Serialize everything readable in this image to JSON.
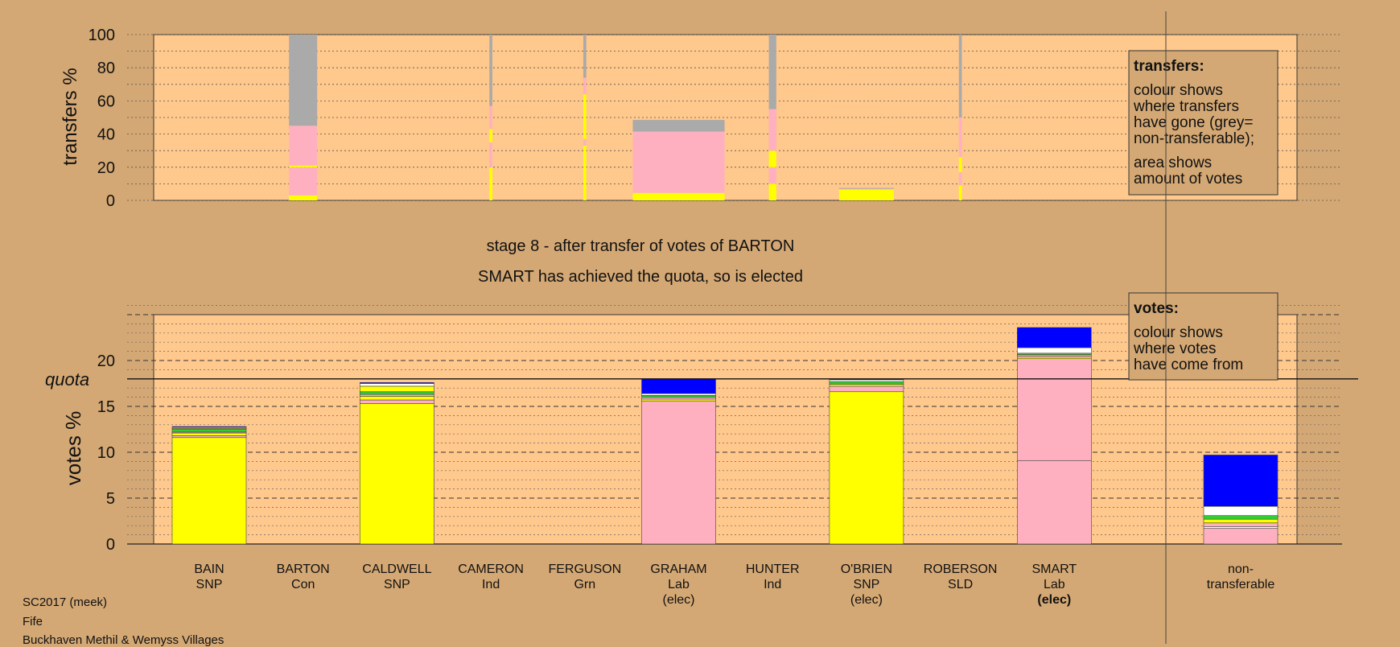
{
  "chart_data": [
    {
      "type": "bar",
      "stacked": true,
      "ylabel": "transfers %",
      "ylim": [
        0,
        100
      ],
      "yticks": [
        0,
        20,
        40,
        60,
        80,
        100
      ],
      "legend": {
        "title": "transfers:",
        "lines1": [
          "colour shows",
          "where transfers",
          "have gone (grey=",
          "non-transferable);"
        ],
        "lines2": [
          "area shows",
          "amount of votes"
        ]
      },
      "columns": [
        {
          "candidate": "BARTON",
          "segments": [
            {
              "color": "#ffff00",
              "value": 3
            },
            {
              "color": "#ffb0c0",
              "value": 17
            },
            {
              "color": "#ffff00",
              "value": 1
            },
            {
              "color": "#ffb0c0",
              "value": 24
            },
            {
              "color": "#aaaaaa",
              "value": 55
            }
          ]
        }
      ],
      "transfer_columns": [
        {
          "candidate": "BARTON",
          "width_frac": 0.38,
          "segments": [
            {
              "color": "#ffff00",
              "value": 3
            },
            {
              "color": "#ffb0c0",
              "value": 17
            },
            {
              "color": "#ffff00",
              "value": 1
            },
            {
              "color": "#ffb0c0",
              "value": 24
            },
            {
              "color": "#aaaaaa",
              "value": 55
            }
          ]
        },
        {
          "candidate": "CAMERON",
          "width_frac": 0.04,
          "segments": [
            {
              "color": "#ffff00",
              "value": 20
            },
            {
              "color": "#ffb0c0",
              "value": 15
            },
            {
              "color": "#ffff00",
              "value": 8
            },
            {
              "color": "#ffb0c0",
              "value": 14
            },
            {
              "color": "#aaaaaa",
              "value": 43
            }
          ]
        },
        {
          "candidate": "FERGUSON",
          "width_frac": 0.04,
          "segments": [
            {
              "color": "#ffff00",
              "value": 33
            },
            {
              "color": "#ffb0c0",
              "value": 4
            },
            {
              "color": "#ffff00",
              "value": 27
            },
            {
              "color": "#ffb0c0",
              "value": 10
            },
            {
              "color": "#aaaaaa",
              "value": 26
            }
          ]
        },
        {
          "candidate": "GRAHAM",
          "width_frac": 1.24,
          "segments": [
            {
              "color": "#ffff00",
              "value": 4.5
            },
            {
              "color": "#ffb0c0",
              "value": 37
            },
            {
              "color": "#aaaaaa",
              "value": 7
            }
          ]
        },
        {
          "candidate": "HUNTER",
          "width_frac": 0.1,
          "segments": [
            {
              "color": "#ffff00",
              "value": 10
            },
            {
              "color": "#ffb0c0",
              "value": 10
            },
            {
              "color": "#ffff00",
              "value": 10
            },
            {
              "color": "#ffb0c0",
              "value": 25
            },
            {
              "color": "#aaaaaa",
              "value": 45
            }
          ]
        },
        {
          "candidate": "O'BRIEN",
          "width_frac": 0.74,
          "segments": [
            {
              "color": "#ffff00",
              "value": 6.5
            },
            {
              "color": "#ffb0c0",
              "value": 0.5
            },
            {
              "color": "#aaaaaa",
              "value": 0.5
            }
          ]
        },
        {
          "candidate": "ROBERSON",
          "width_frac": 0.04,
          "segments": [
            {
              "color": "#ffff00",
              "value": 9
            },
            {
              "color": "#ffb0c0",
              "value": 8
            },
            {
              "color": "#ffff00",
              "value": 9
            },
            {
              "color": "#ffb0c0",
              "value": 24
            },
            {
              "color": "#aaaaaa",
              "value": 50
            }
          ]
        }
      ]
    },
    {
      "type": "bar",
      "stacked": true,
      "ylabel": "votes %",
      "ylim": [
        0,
        25
      ],
      "yticks": [
        0,
        5,
        10,
        15,
        20
      ],
      "quota": 18.0,
      "quota_label": "quota",
      "legend": {
        "title": "votes:",
        "lines1": [
          "colour shows",
          "where votes",
          "have come from"
        ]
      },
      "categories": [
        {
          "name": "BAIN",
          "party": "SNP",
          "elected": ""
        },
        {
          "name": "BARTON",
          "party": "Con",
          "elected": ""
        },
        {
          "name": "CALDWELL",
          "party": "SNP",
          "elected": ""
        },
        {
          "name": "CAMERON",
          "party": "Ind",
          "elected": ""
        },
        {
          "name": "FERGUSON",
          "party": "Grn",
          "elected": ""
        },
        {
          "name": "GRAHAM",
          "party": "Lab",
          "elected": "(elec)"
        },
        {
          "name": "HUNTER",
          "party": "Ind",
          "elected": ""
        },
        {
          "name": "O'BRIEN",
          "party": "SNP",
          "elected": "(elec)"
        },
        {
          "name": "ROBERSON",
          "party": "SLD",
          "elected": ""
        },
        {
          "name": "SMART",
          "party": "Lab",
          "elected": "(elec)",
          "bold": true
        }
      ],
      "nontransferable_label": [
        "non-",
        "transferable"
      ],
      "bars": [
        {
          "candidate": "BAIN",
          "segments": [
            {
              "color": "#ffff00",
              "value": 11.6
            },
            {
              "color": "#ffb0c0",
              "value": 0.2
            },
            {
              "color": "#ffff00",
              "value": 0.3
            },
            {
              "color": "#ffb0c0",
              "value": 0.1
            },
            {
              "color": "#33cc33",
              "value": 0.3
            },
            {
              "color": "#ffff00",
              "value": 0.1
            },
            {
              "color": "#ffffff",
              "value": 0.1
            },
            {
              "color": "#0000ff",
              "value": 0.1
            }
          ]
        },
        {
          "candidate": "BARTON",
          "segments": []
        },
        {
          "candidate": "CALDWELL",
          "segments": [
            {
              "color": "#ffff00",
              "value": 15.3
            },
            {
              "color": "#ffb0c0",
              "value": 0.4
            },
            {
              "color": "#ffff00",
              "value": 0.4
            },
            {
              "color": "#ffb0c0",
              "value": 0.2
            },
            {
              "color": "#33cc33",
              "value": 0.3
            },
            {
              "color": "#ffff00",
              "value": 0.6
            },
            {
              "color": "#ffffff",
              "value": 0.3
            },
            {
              "color": "#0000ff",
              "value": 0.1
            }
          ]
        },
        {
          "candidate": "CAMERON",
          "segments": []
        },
        {
          "candidate": "FERGUSON",
          "segments": []
        },
        {
          "candidate": "GRAHAM",
          "segments": [
            {
              "color": "#ffb0c0",
              "value": 15.6
            },
            {
              "color": "#ffff00",
              "value": 0.2
            },
            {
              "color": "#ffb0c0",
              "value": 0.2
            },
            {
              "color": "#33cc33",
              "value": 0.2
            },
            {
              "color": "#ffffff",
              "value": 0.2
            },
            {
              "color": "#0000ff",
              "value": 1.6
            }
          ]
        },
        {
          "candidate": "HUNTER",
          "segments": []
        },
        {
          "candidate": "O'BRIEN",
          "segments": [
            {
              "color": "#ffff00",
              "value": 16.6
            },
            {
              "color": "#ffb0c0",
              "value": 0.6
            },
            {
              "color": "#ffff00",
              "value": 0.2
            },
            {
              "color": "#33cc33",
              "value": 0.3
            },
            {
              "color": "#ffffff",
              "value": 0.2
            },
            {
              "color": "#0000ff",
              "value": 0.1
            }
          ]
        },
        {
          "candidate": "ROBERSON",
          "segments": []
        },
        {
          "candidate": "SMART",
          "segments": [
            {
              "color": "#ffb0c0",
              "value": 9.1
            },
            {
              "color": "#ffb0c0",
              "value": 11.1
            },
            {
              "color": "#ffff00",
              "value": 0.2
            },
            {
              "color": "#ffb0c0",
              "value": 0.2
            },
            {
              "color": "#33cc33",
              "value": 0.1
            },
            {
              "color": "#ffff00",
              "value": 0.1
            },
            {
              "color": "#ffffff",
              "value": 0.6
            },
            {
              "color": "#0000ff",
              "value": 2.2
            }
          ]
        }
      ],
      "nontransferable": [
        {
          "color": "#ffb0c0",
          "value": 1.7
        },
        {
          "color": "#ffffff",
          "value": 0.2
        },
        {
          "color": "#ffb0c0",
          "value": 0.4
        },
        {
          "color": "#ffff00",
          "value": 0.4
        },
        {
          "color": "#33cc33",
          "value": 0.4
        },
        {
          "color": "#ffffff",
          "value": 1.0
        },
        {
          "color": "#0000ff",
          "value": 5.6
        }
      ]
    }
  ],
  "stage_title": "stage 8 - after transfer of votes of BARTON",
  "stage_subtitle": "SMART has achieved the quota, so is elected",
  "footer": [
    "SC2017 (meek)",
    "Fife",
    "Buckhaven Methil & Wemyss Villages"
  ],
  "colors": {
    "background": "#d4a874",
    "plot_bg": "#ffc88c",
    "snp": "#ffff00",
    "lab": "#ffb0c0",
    "con": "#0000ff",
    "grn": "#33cc33",
    "nontransferable": "#aaaaaa"
  }
}
